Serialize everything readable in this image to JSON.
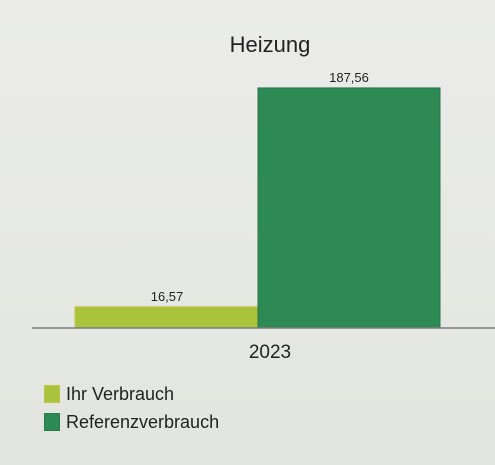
{
  "chart_data": {
    "type": "bar",
    "title": "Heizung",
    "categories": [
      "2023"
    ],
    "series": [
      {
        "name": "Ihr Verbrauch",
        "values": [
          16.57
        ],
        "label": "16,57",
        "color": "#a8c43c"
      },
      {
        "name": "Referenzverbrauch",
        "values": [
          187.56
        ],
        "label": "187,56",
        "color": "#2e8a55"
      }
    ],
    "ylim": [
      0,
      200
    ],
    "grid": false,
    "legend_position": "bottom-left"
  }
}
